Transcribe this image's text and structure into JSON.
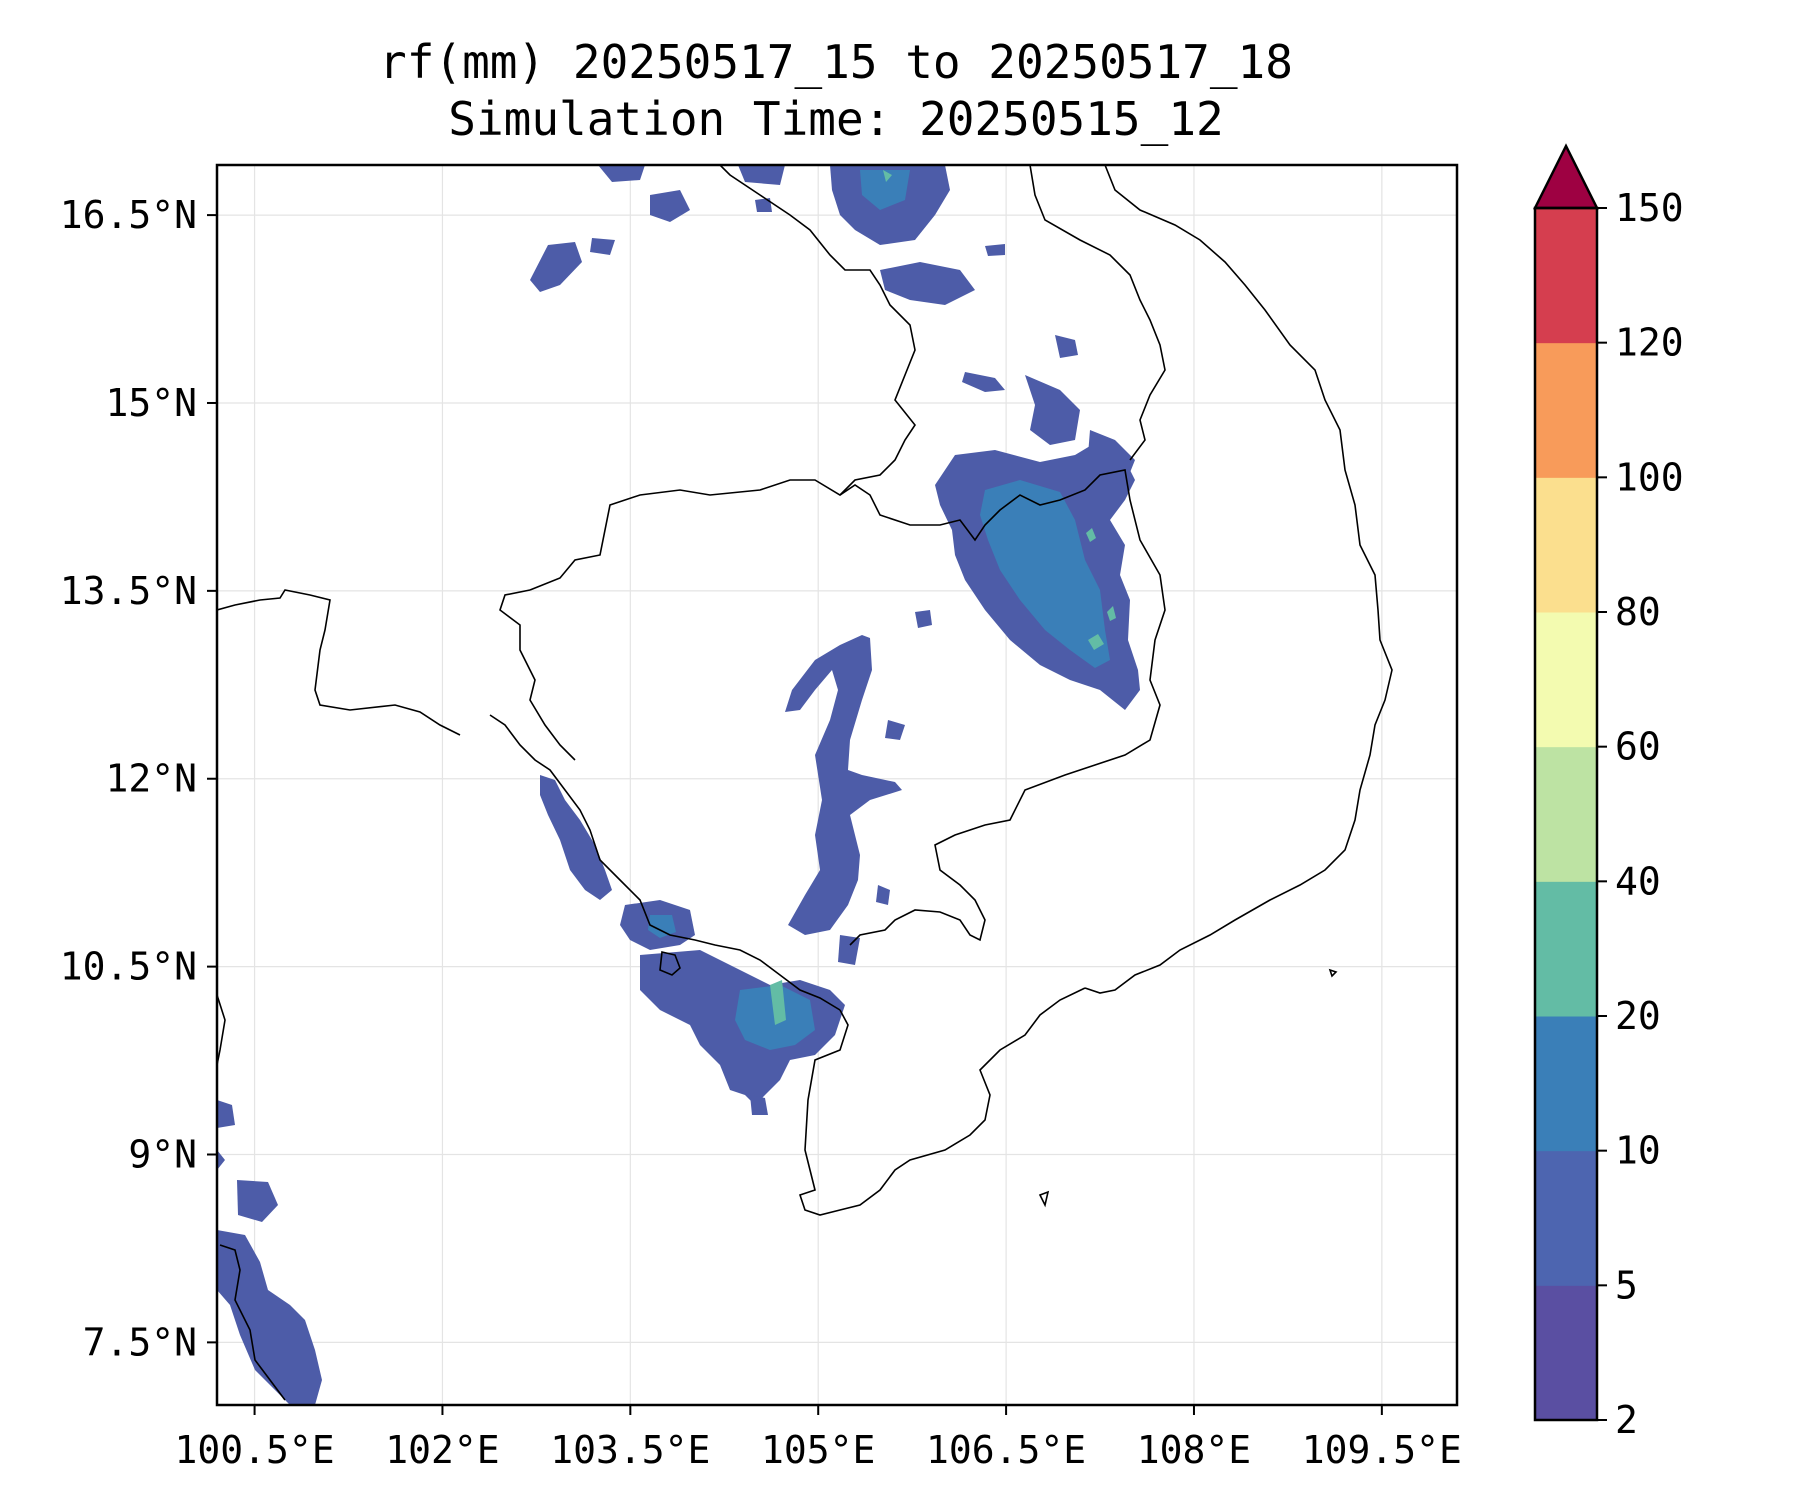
{
  "title": {
    "line1": "rf(mm) 20250517_15 to 20250517_18",
    "line2": "Simulation Time: 20250515_12"
  },
  "map": {
    "lon_range": [
      100.2,
      110.1
    ],
    "lat_range": [
      7.0,
      16.9
    ],
    "grid": true,
    "lon_ticks": [
      {
        "value": 100.5,
        "label": "100.5°E"
      },
      {
        "value": 102.0,
        "label": "102°E"
      },
      {
        "value": 103.5,
        "label": "103.5°E"
      },
      {
        "value": 105.0,
        "label": "105°E"
      },
      {
        "value": 106.5,
        "label": "106.5°E"
      },
      {
        "value": 108.0,
        "label": "108°E"
      },
      {
        "value": 109.5,
        "label": "109.5°E"
      }
    ],
    "lat_ticks": [
      {
        "value": 16.5,
        "label": "16.5°N"
      },
      {
        "value": 15.0,
        "label": "15°N"
      },
      {
        "value": 13.5,
        "label": "13.5°N"
      },
      {
        "value": 12.0,
        "label": "12°N"
      },
      {
        "value": 10.5,
        "label": "10.5°N"
      },
      {
        "value": 9.0,
        "label": "9°N"
      },
      {
        "value": 7.5,
        "label": "7.5°N"
      }
    ]
  },
  "colorbar": {
    "levels": [
      2,
      5,
      10,
      20,
      40,
      60,
      80,
      100,
      120,
      150
    ],
    "labels": [
      "2",
      "5",
      "10",
      "20",
      "40",
      "60",
      "80",
      "100",
      "120",
      "150"
    ],
    "colors": [
      "#5a4fa2",
      "#4d65b0",
      "#3a7fb8",
      "#63bca5",
      "#bde3a3",
      "#f3fbb0",
      "#fbdf8e",
      "#f89b5a",
      "#d53e4f"
    ],
    "extend_color": "#9e0142"
  },
  "colors": {
    "rain_5": "#4d5ca8",
    "rain_10": "#3a7fb8",
    "rain_20": "#63bca5",
    "coast": "#000000",
    "grid": "#e4e4e4"
  }
}
